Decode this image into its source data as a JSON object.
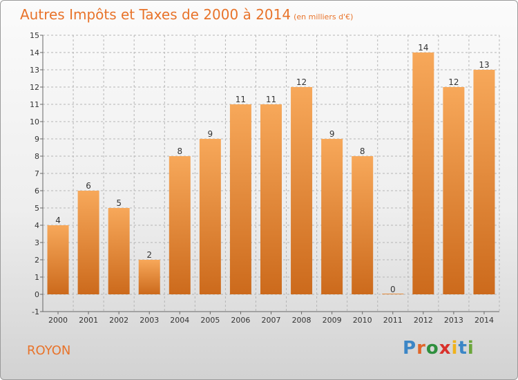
{
  "header": {
    "title": "Autres Impôts et Taxes de 2000 à 2014",
    "subtitle": "(en milliers d'€)"
  },
  "footer": {
    "place": "ROYON",
    "logo_text": "Proxiti"
  },
  "colors": {
    "title": "#e8732a",
    "bar_top": "#f7a85a",
    "bar_bottom": "#cc6a1c",
    "grid": "#b5b5b5",
    "axis": "#666666"
  },
  "chart_data": {
    "type": "bar",
    "categories": [
      "2000",
      "2001",
      "2002",
      "2003",
      "2004",
      "2005",
      "2006",
      "2007",
      "2008",
      "2009",
      "2010",
      "2011",
      "2012",
      "2013",
      "2014"
    ],
    "values": [
      4,
      6,
      5,
      2,
      8,
      9,
      11,
      11,
      12,
      9,
      8,
      0,
      14,
      12,
      13
    ],
    "data_labels": [
      "4",
      "6",
      "5",
      "2",
      "8",
      "9",
      "11",
      "11",
      "12",
      "9",
      "8",
      "0",
      "14",
      "12",
      "13"
    ],
    "ylim": [
      -1,
      15
    ],
    "yticks": [
      -1,
      0,
      1,
      2,
      3,
      4,
      5,
      6,
      7,
      8,
      9,
      10,
      11,
      12,
      13,
      14,
      15
    ],
    "grid": true,
    "title": "Autres Impôts et Taxes de 2000 à 2014",
    "xlabel": "",
    "ylabel": ""
  }
}
